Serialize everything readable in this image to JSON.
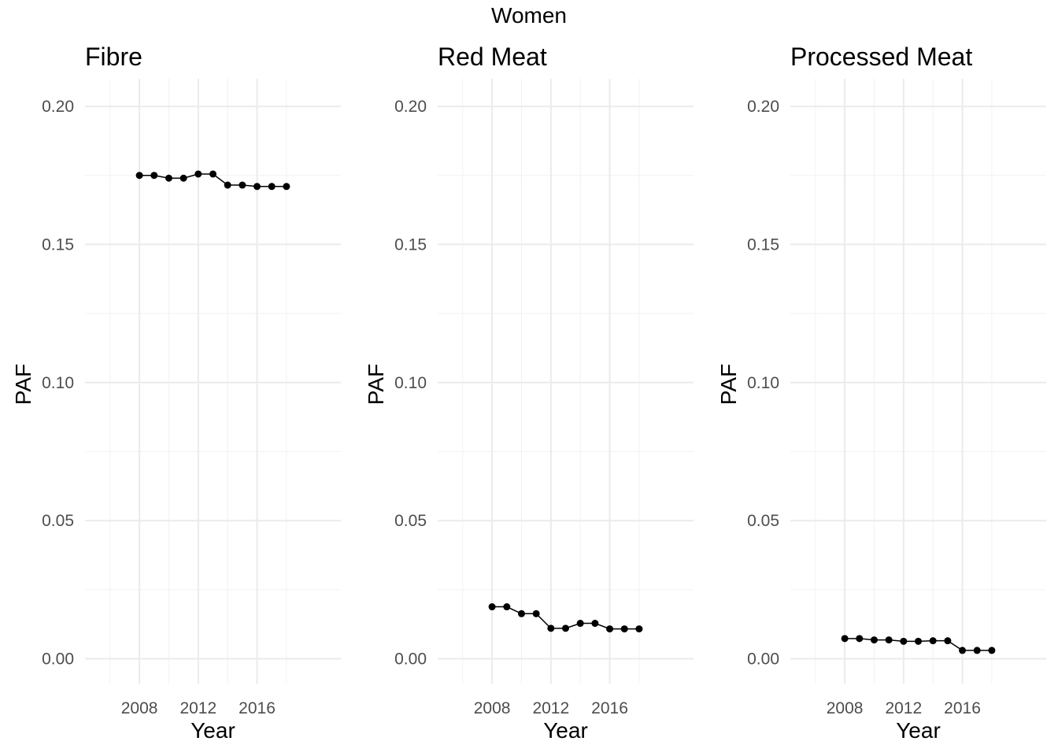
{
  "title": "Women",
  "chart_data": [
    {
      "type": "line",
      "title": "Fibre",
      "xlabel": "Year",
      "ylabel": "PAF",
      "x": [
        2008,
        2009,
        2010,
        2011,
        2012,
        2013,
        2014,
        2015,
        2016,
        2017,
        2018
      ],
      "values": [
        0.175,
        0.175,
        0.174,
        0.174,
        0.1755,
        0.1755,
        0.1715,
        0.1715,
        0.171,
        0.171,
        0.171
      ],
      "xlim": [
        2004.3,
        2021.7
      ],
      "ylim": [
        -0.009,
        0.21
      ],
      "x_ticks": [
        "2008",
        "2012",
        "2016"
      ],
      "y_ticks": [
        "0.00",
        "0.05",
        "0.10",
        "0.15",
        "0.20"
      ],
      "grid": true
    },
    {
      "type": "line",
      "title": "Red Meat",
      "xlabel": "Year",
      "ylabel": "PAF",
      "x": [
        2008,
        2009,
        2010,
        2011,
        2012,
        2013,
        2014,
        2015,
        2016,
        2017,
        2018
      ],
      "values": [
        0.0188,
        0.0188,
        0.0163,
        0.0163,
        0.011,
        0.011,
        0.0128,
        0.0128,
        0.0108,
        0.0108,
        0.0108
      ],
      "xlim": [
        2004.3,
        2021.7
      ],
      "ylim": [
        -0.009,
        0.21
      ],
      "x_ticks": [
        "2008",
        "2012",
        "2016"
      ],
      "y_ticks": [
        "0.00",
        "0.05",
        "0.10",
        "0.15",
        "0.20"
      ],
      "grid": true
    },
    {
      "type": "line",
      "title": "Processed Meat",
      "xlabel": "Year",
      "ylabel": "PAF",
      "x": [
        2008,
        2009,
        2010,
        2011,
        2012,
        2013,
        2014,
        2015,
        2016,
        2017,
        2018
      ],
      "values": [
        0.0073,
        0.0073,
        0.0068,
        0.0068,
        0.0063,
        0.0063,
        0.0065,
        0.0065,
        0.003,
        0.003,
        0.003
      ],
      "xlim": [
        2004.3,
        2021.7
      ],
      "ylim": [
        -0.009,
        0.21
      ],
      "x_ticks": [
        "2008",
        "2012",
        "2016"
      ],
      "y_ticks": [
        "0.00",
        "0.05",
        "0.10",
        "0.15",
        "0.20"
      ],
      "grid": true
    }
  ]
}
